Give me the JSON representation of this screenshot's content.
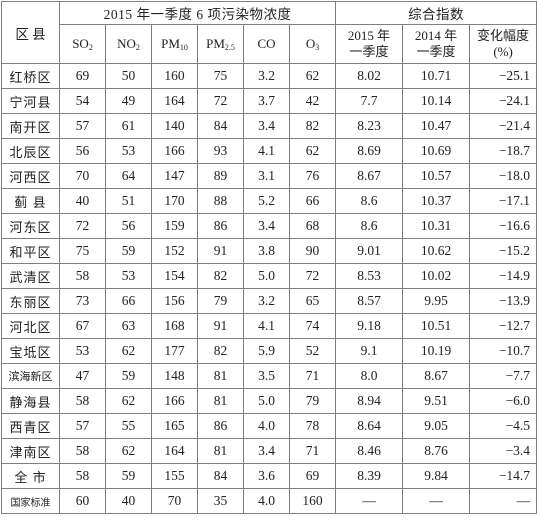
{
  "header": {
    "district_label": "区 县",
    "pollutant_group_label": "2015 年一季度 6 项污染物浓度",
    "index_group_label": "综合指数",
    "pollutants": [
      {
        "base": "SO",
        "sub": "2"
      },
      {
        "base": "NO",
        "sub": "2"
      },
      {
        "base": "PM",
        "sub": "10"
      },
      {
        "base": "PM",
        "sub": "2.5"
      },
      {
        "base": "CO",
        "sub": ""
      },
      {
        "base": "O",
        "sub": "3"
      }
    ],
    "index_cols": [
      {
        "line1": "2015 年",
        "line2": "一季度"
      },
      {
        "line1": "2014 年",
        "line2": "一季度"
      },
      {
        "line1": "变化幅度",
        "line2": "(%)"
      }
    ]
  },
  "rows": [
    {
      "district": "红桥区",
      "so2": "69",
      "no2": "50",
      "pm10": "160",
      "pm25": "75",
      "co": "3.2",
      "o3": "62",
      "idx2015": "8.02",
      "idx2014": "10.71",
      "change": "−25.1"
    },
    {
      "district": "宁河县",
      "so2": "54",
      "no2": "49",
      "pm10": "164",
      "pm25": "72",
      "co": "3.7",
      "o3": "42",
      "idx2015": "7.7",
      "idx2014": "10.14",
      "change": "−24.1"
    },
    {
      "district": "南开区",
      "so2": "57",
      "no2": "61",
      "pm10": "140",
      "pm25": "84",
      "co": "3.4",
      "o3": "82",
      "idx2015": "8.23",
      "idx2014": "10.47",
      "change": "−21.4"
    },
    {
      "district": "北辰区",
      "so2": "56",
      "no2": "53",
      "pm10": "166",
      "pm25": "93",
      "co": "4.1",
      "o3": "62",
      "idx2015": "8.69",
      "idx2014": "10.69",
      "change": "−18.7"
    },
    {
      "district": "河西区",
      "so2": "70",
      "no2": "64",
      "pm10": "147",
      "pm25": "89",
      "co": "3.1",
      "o3": "76",
      "idx2015": "8.67",
      "idx2014": "10.57",
      "change": "−18.0"
    },
    {
      "district": "蓟 县",
      "so2": "40",
      "no2": "51",
      "pm10": "170",
      "pm25": "88",
      "co": "5.2",
      "o3": "66",
      "idx2015": "8.6",
      "idx2014": "10.37",
      "change": "−17.1"
    },
    {
      "district": "河东区",
      "so2": "72",
      "no2": "56",
      "pm10": "159",
      "pm25": "86",
      "co": "3.4",
      "o3": "68",
      "idx2015": "8.6",
      "idx2014": "10.31",
      "change": "−16.6"
    },
    {
      "district": "和平区",
      "so2": "75",
      "no2": "59",
      "pm10": "152",
      "pm25": "91",
      "co": "3.8",
      "o3": "90",
      "idx2015": "9.01",
      "idx2014": "10.62",
      "change": "−15.2"
    },
    {
      "district": "武清区",
      "so2": "58",
      "no2": "53",
      "pm10": "154",
      "pm25": "82",
      "co": "5.0",
      "o3": "72",
      "idx2015": "8.53",
      "idx2014": "10.02",
      "change": "−14.9"
    },
    {
      "district": "东丽区",
      "so2": "73",
      "no2": "66",
      "pm10": "156",
      "pm25": "79",
      "co": "3.2",
      "o3": "65",
      "idx2015": "8.57",
      "idx2014": "9.95",
      "change": "−13.9"
    },
    {
      "district": "河北区",
      "so2": "67",
      "no2": "63",
      "pm10": "168",
      "pm25": "91",
      "co": "4.1",
      "o3": "74",
      "idx2015": "9.18",
      "idx2014": "10.51",
      "change": "−12.7"
    },
    {
      "district": "宝坻区",
      "so2": "53",
      "no2": "62",
      "pm10": "177",
      "pm25": "82",
      "co": "5.9",
      "o3": "52",
      "idx2015": "9.1",
      "idx2014": "10.19",
      "change": "−10.7"
    },
    {
      "district": "滨海新区",
      "so2": "47",
      "no2": "59",
      "pm10": "148",
      "pm25": "81",
      "co": "3.5",
      "o3": "71",
      "idx2015": "8.0",
      "idx2014": "8.67",
      "change": "−7.7"
    },
    {
      "district": "静海县",
      "so2": "58",
      "no2": "62",
      "pm10": "166",
      "pm25": "81",
      "co": "5.0",
      "o3": "79",
      "idx2015": "8.94",
      "idx2014": "9.51",
      "change": "−6.0"
    },
    {
      "district": "西青区",
      "so2": "57",
      "no2": "55",
      "pm10": "165",
      "pm25": "86",
      "co": "4.0",
      "o3": "78",
      "idx2015": "8.64",
      "idx2014": "9.05",
      "change": "−4.5"
    },
    {
      "district": "津南区",
      "so2": "58",
      "no2": "62",
      "pm10": "164",
      "pm25": "81",
      "co": "3.4",
      "o3": "71",
      "idx2015": "8.46",
      "idx2014": "8.76",
      "change": "−3.4"
    },
    {
      "district": "全 市",
      "so2": "58",
      "no2": "59",
      "pm10": "155",
      "pm25": "84",
      "co": "3.6",
      "o3": "69",
      "idx2015": "8.39",
      "idx2014": "9.84",
      "change": "−14.7"
    },
    {
      "district": "国家标准",
      "so2": "60",
      "no2": "40",
      "pm10": "70",
      "pm25": "35",
      "co": "4.0",
      "o3": "160",
      "idx2015": "—",
      "idx2014": "—",
      "change": "—"
    }
  ]
}
